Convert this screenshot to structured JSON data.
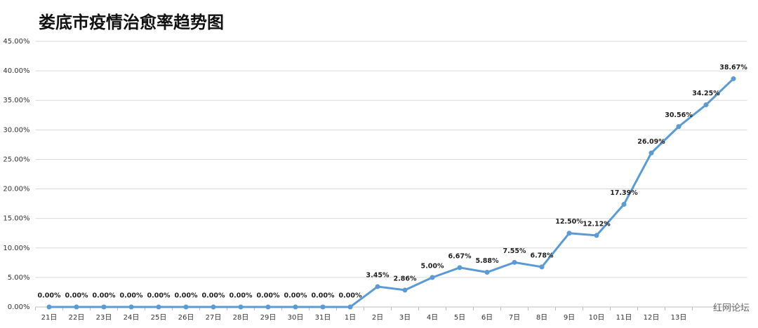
{
  "chart_data": {
    "type": "line",
    "title": "娄底市疫情治愈率趋势图",
    "categories": [
      "21日",
      "22日",
      "23日",
      "24日",
      "25日",
      "26日",
      "27日",
      "28日",
      "29日",
      "30日",
      "31日",
      "1日",
      "2日",
      "3日",
      "4日",
      "5日",
      "6日",
      "7日",
      "8日",
      "9日",
      "10日",
      "11日",
      "12日",
      "13日",
      null,
      null
    ],
    "series": [
      {
        "name": "治愈率",
        "color": "#5b9bd5",
        "values": [
          0,
          0,
          0,
          0,
          0,
          0,
          0,
          0,
          0,
          0,
          0,
          0,
          3.45,
          2.86,
          5.0,
          6.67,
          5.88,
          7.55,
          6.78,
          12.5,
          12.12,
          17.39,
          26.09,
          30.56,
          34.25,
          38.67
        ],
        "value_labels": [
          "0.00%",
          "0.00%",
          "0.00%",
          "0.00%",
          "0.00%",
          "0.00%",
          "0.00%",
          "0.00%",
          "0.00%",
          "0.00%",
          "0.00%",
          "0.00%",
          "3.45%",
          "2.86%",
          "5.00%",
          "6.67%",
          "5.88%",
          "7.55%",
          "6.78%",
          "12.50%",
          "12.12%",
          "17.39%",
          "26.09%",
          "30.56%",
          "34.25%",
          "38.67%"
        ]
      }
    ],
    "ylim": [
      0,
      45
    ],
    "yticks": [
      {
        "value": 0,
        "label": "0.00%"
      },
      {
        "value": 5,
        "label": "5.00%"
      },
      {
        "value": 10,
        "label": "10.00%"
      },
      {
        "value": 15,
        "label": "15.00%"
      },
      {
        "value": 20,
        "label": "20.00%"
      },
      {
        "value": 25,
        "label": "25.00%"
      },
      {
        "value": 30,
        "label": "30.00%"
      },
      {
        "value": 35,
        "label": "35.00%"
      },
      {
        "value": 40,
        "label": "40.00%"
      },
      {
        "value": 45,
        "label": "45.00%"
      }
    ],
    "grid": true,
    "watermark": "红网论坛"
  }
}
